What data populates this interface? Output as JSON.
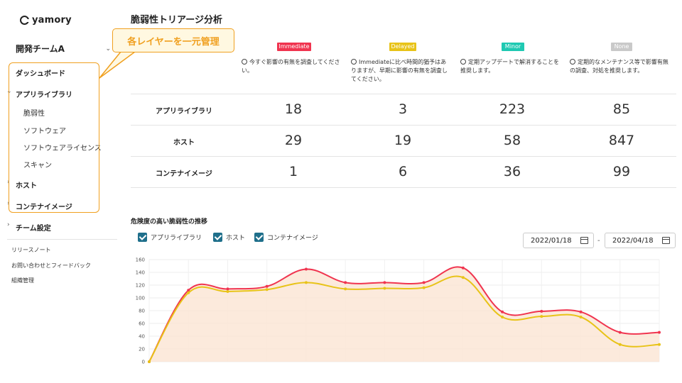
{
  "app": {
    "logo_text": "yamory"
  },
  "sidebar": {
    "team_name": "開発チームA",
    "items": [
      {
        "label": "ダッシュボード"
      },
      {
        "label": "アプリライブラリ"
      },
      {
        "label": "脆弱性"
      },
      {
        "label": "ソフトウェア"
      },
      {
        "label": "ソフトウェアライセンス"
      },
      {
        "label": "スキャン"
      },
      {
        "label": "ホスト"
      },
      {
        "label": "コンテナイメージ"
      },
      {
        "label": "チーム設定"
      }
    ],
    "footer_links": [
      "リリースノート",
      "お問い合わせとフィードバック",
      "組織管理"
    ]
  },
  "callout": {
    "text": "各レイヤーを一元管理"
  },
  "main": {
    "title": "脆弱性トリアージ分析",
    "columns": [
      {
        "badge": "Immediate",
        "color": "#f0344f",
        "desc": "今すぐ影響の有無を調査してください。"
      },
      {
        "badge": "Delayed",
        "color": "#e8c318",
        "desc": "Immediateに比べ時間的猶予はありますが、早期に影響の有無を調査してください。"
      },
      {
        "badge": "Minor",
        "color": "#1fc9b2",
        "desc": "定期アップデートで解消することを推奨します。"
      },
      {
        "badge": "None",
        "color": "#c9c9c9",
        "desc": "定期的なメンテナンス等で影響有無の調査、対処を推奨します。"
      }
    ],
    "rows": [
      {
        "label": "アプリライブラリ",
        "values": [
          "18",
          "3",
          "223",
          "85"
        ]
      },
      {
        "label": "ホスト",
        "values": [
          "29",
          "19",
          "58",
          "847"
        ]
      },
      {
        "label": "コンテナイメージ",
        "values": [
          "1",
          "6",
          "36",
          "99"
        ]
      }
    ]
  },
  "chart_section": {
    "title": "危険度の高い脆弱性の推移",
    "legend": [
      "アプリライブラリ",
      "ホスト",
      "コンテナイメージ"
    ],
    "date_from": "2022/01/18",
    "date_sep": "-",
    "date_to": "2022/04/18"
  },
  "chart_data": {
    "type": "area",
    "ylim": [
      0,
      160
    ],
    "yticks": [
      "0",
      "20",
      "40",
      "60",
      "80",
      "100",
      "120",
      "140",
      "160"
    ],
    "grid": true,
    "series": [
      {
        "color": "#f0344f",
        "values": [
          0,
          112,
          114,
          118,
          145,
          124,
          124,
          124,
          147,
          78,
          79,
          78,
          46,
          46
        ]
      },
      {
        "color": "#e8c318",
        "values": [
          0,
          108,
          110,
          113,
          124,
          114,
          115,
          116,
          132,
          70,
          71,
          70,
          27,
          27
        ]
      }
    ]
  }
}
